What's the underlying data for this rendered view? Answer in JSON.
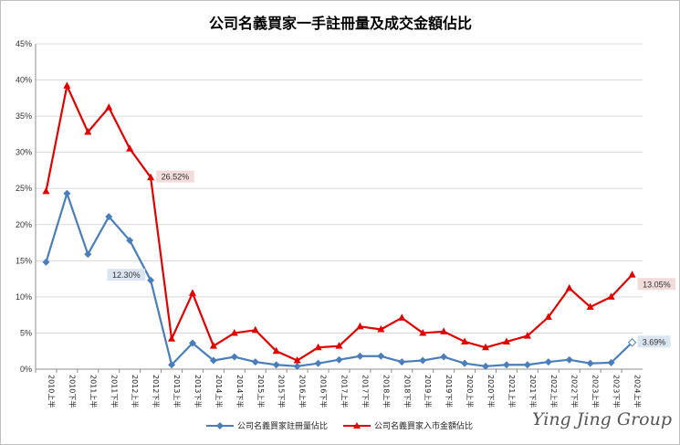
{
  "chart_data": {
    "type": "line",
    "title": "公司名義買家一手註冊量及成交金額佔比",
    "categories": [
      "2010上半",
      "2010下半",
      "2011上半",
      "2011下半",
      "2012上半",
      "2012下半",
      "2013上半",
      "2013下半",
      "2014上半",
      "2014下半",
      "2015上半",
      "2015下半",
      "2016上半",
      "2016下半",
      "2017上半",
      "2017下半",
      "2018上半",
      "2018下半",
      "2019上半",
      "2019下半",
      "2020上半",
      "2020下半",
      "2021上半",
      "2021下半",
      "2022上半",
      "2022下半",
      "2023上半",
      "2023下半",
      "2024上半"
    ],
    "x_tick_labels": [
      "2010上半",
      "2010下半",
      "2011上半",
      "2011下半",
      "2012上半",
      "2012下半",
      "2013上半",
      "2013下半",
      "2014上半",
      "2014下半",
      "2015上半",
      "2015下半",
      "2016上半",
      "2016下半",
      "2017上半",
      "2017下半",
      "2018上半",
      "2018下半",
      "2019上半",
      "2019下半",
      "2020上半",
      "2020下半",
      "2021上半",
      "2021下半",
      "2022上半",
      "2022下半",
      "2023上半",
      "2023下半",
      "2024上半"
    ],
    "y_tick_labels": [
      "0%",
      "5%",
      "10%",
      "15%",
      "20%",
      "25%",
      "30%",
      "35%",
      "40%",
      "45%"
    ],
    "ylim": [
      0,
      45
    ],
    "series": [
      {
        "name": "公司名義買家註冊量佔比",
        "color": "#4a7ebb",
        "marker": "diamond",
        "values": [
          14.8,
          24.3,
          15.9,
          21.1,
          17.8,
          12.3,
          0.6,
          3.6,
          1.2,
          1.7,
          1.0,
          0.6,
          0.4,
          0.8,
          1.3,
          1.8,
          1.8,
          1.0,
          1.2,
          1.7,
          0.8,
          0.4,
          0.6,
          0.6,
          1.0,
          1.3,
          0.8,
          0.9,
          3.69
        ]
      },
      {
        "name": "公司名義買家入市金額佔比",
        "color": "#e00000",
        "marker": "triangle",
        "values": [
          24.6,
          39.2,
          32.8,
          36.2,
          30.5,
          26.52,
          4.2,
          10.5,
          3.2,
          5.0,
          5.4,
          2.5,
          1.2,
          3.0,
          3.2,
          5.9,
          5.5,
          7.1,
          5.0,
          5.2,
          3.8,
          3.0,
          3.8,
          4.6,
          7.2,
          11.2,
          8.6,
          10.0,
          13.05
        ]
      }
    ],
    "data_labels": [
      {
        "series": 0,
        "index": 5,
        "text": "12.30%",
        "color": "#dbe5f1"
      },
      {
        "series": 0,
        "index": 28,
        "text": "3.69%",
        "color": "#dbe5f1"
      },
      {
        "series": 1,
        "index": 5,
        "text": "26.52%",
        "color": "#f2dcdb"
      },
      {
        "series": 1,
        "index": 28,
        "text": "13.05%",
        "color": "#f2dcdb"
      }
    ],
    "grid": true,
    "legend": "bottom",
    "watermark": "Ying Jing Group"
  }
}
